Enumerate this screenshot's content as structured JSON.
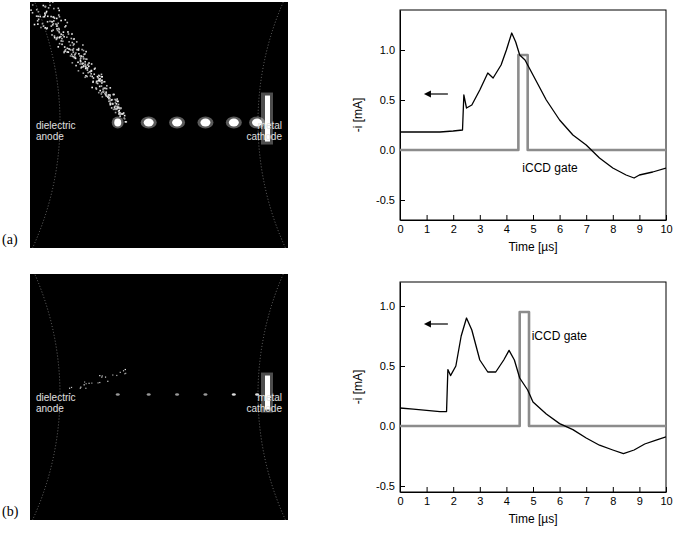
{
  "panel_labels": [
    "(a)",
    "(b)"
  ],
  "images": [
    {
      "left_label": "dielectric anode",
      "right_label": "metal cathode"
    },
    {
      "left_label": "dielectric anode",
      "right_label": "metal cathode"
    }
  ],
  "chart_data": [
    {
      "type": "line",
      "x_label": "Time [µs]",
      "y_label": "-i [mA]",
      "xlim": [
        0,
        10
      ],
      "xticks": [
        0,
        1,
        2,
        3,
        4,
        5,
        6,
        7,
        8,
        9,
        10
      ],
      "ylim": [
        -0.7,
        1.4
      ],
      "yticks": [
        -0.5,
        {
          "value": 0,
          "label": "0.0"
        },
        0.5,
        {
          "value": 1,
          "label": "1.0"
        }
      ],
      "series": [
        {
          "color": "#000000",
          "x": [
            0,
            0.5,
            1,
            1.5,
            2,
            2.35,
            2.4,
            2.5,
            2.7,
            3.0,
            3.3,
            3.5,
            3.8,
            4.0,
            4.2,
            4.35,
            4.5,
            4.7,
            5.0,
            5.5,
            6.0,
            6.5,
            7.0,
            7.5,
            8.0,
            8.5,
            8.8,
            9.0,
            9.5,
            10
          ],
          "values": [
            0.18,
            0.18,
            0.18,
            0.18,
            0.19,
            0.2,
            0.55,
            0.42,
            0.45,
            0.6,
            0.77,
            0.72,
            0.85,
            1.0,
            1.17,
            1.08,
            0.95,
            0.9,
            0.75,
            0.5,
            0.3,
            0.15,
            0.05,
            -0.08,
            -0.18,
            -0.25,
            -0.28,
            -0.25,
            -0.22,
            -0.18
          ]
        },
        {
          "color": "#8c8c8c",
          "x": [
            0,
            4.45,
            4.45,
            4.8,
            4.8,
            10
          ],
          "values": [
            0,
            0,
            0.95,
            0.95,
            0,
            0
          ]
        }
      ],
      "annotations": [
        {
          "text": "iCCD gate",
          "x": 4.6,
          "y": -0.22
        }
      ]
    },
    {
      "type": "line",
      "x_label": "Time [µs]",
      "y_label": "-i [mA]",
      "xlim": [
        0,
        10
      ],
      "xticks": [
        0,
        1,
        2,
        3,
        4,
        5,
        6,
        7,
        8,
        9,
        10
      ],
      "ylim": [
        -0.55,
        1.2
      ],
      "yticks": [
        -0.5,
        {
          "value": 0,
          "label": "0.0"
        },
        0.5,
        {
          "value": 1,
          "label": "1.0"
        }
      ],
      "series": [
        {
          "color": "#000000",
          "x": [
            0,
            0.5,
            1,
            1.5,
            1.75,
            1.8,
            1.9,
            2.1,
            2.3,
            2.5,
            2.7,
            3.0,
            3.3,
            3.6,
            3.9,
            4.1,
            4.3,
            4.5,
            4.8,
            5.0,
            5.5,
            6.0,
            6.5,
            7.0,
            7.5,
            8.0,
            8.4,
            8.8,
            9.2,
            9.6,
            10
          ],
          "values": [
            0.15,
            0.14,
            0.13,
            0.12,
            0.12,
            0.47,
            0.42,
            0.5,
            0.75,
            0.9,
            0.8,
            0.55,
            0.45,
            0.45,
            0.55,
            0.63,
            0.55,
            0.4,
            0.3,
            0.2,
            0.1,
            0.02,
            -0.03,
            -0.1,
            -0.16,
            -0.2,
            -0.23,
            -0.2,
            -0.15,
            -0.12,
            -0.09
          ]
        },
        {
          "color": "#8c8c8c",
          "x": [
            0,
            4.5,
            4.5,
            4.85,
            4.85,
            10
          ],
          "values": [
            0,
            0,
            0.95,
            0.95,
            0,
            0
          ]
        }
      ],
      "annotations": [
        {
          "text": "iCCD gate",
          "x": 4.95,
          "y": 0.72
        }
      ]
    }
  ]
}
